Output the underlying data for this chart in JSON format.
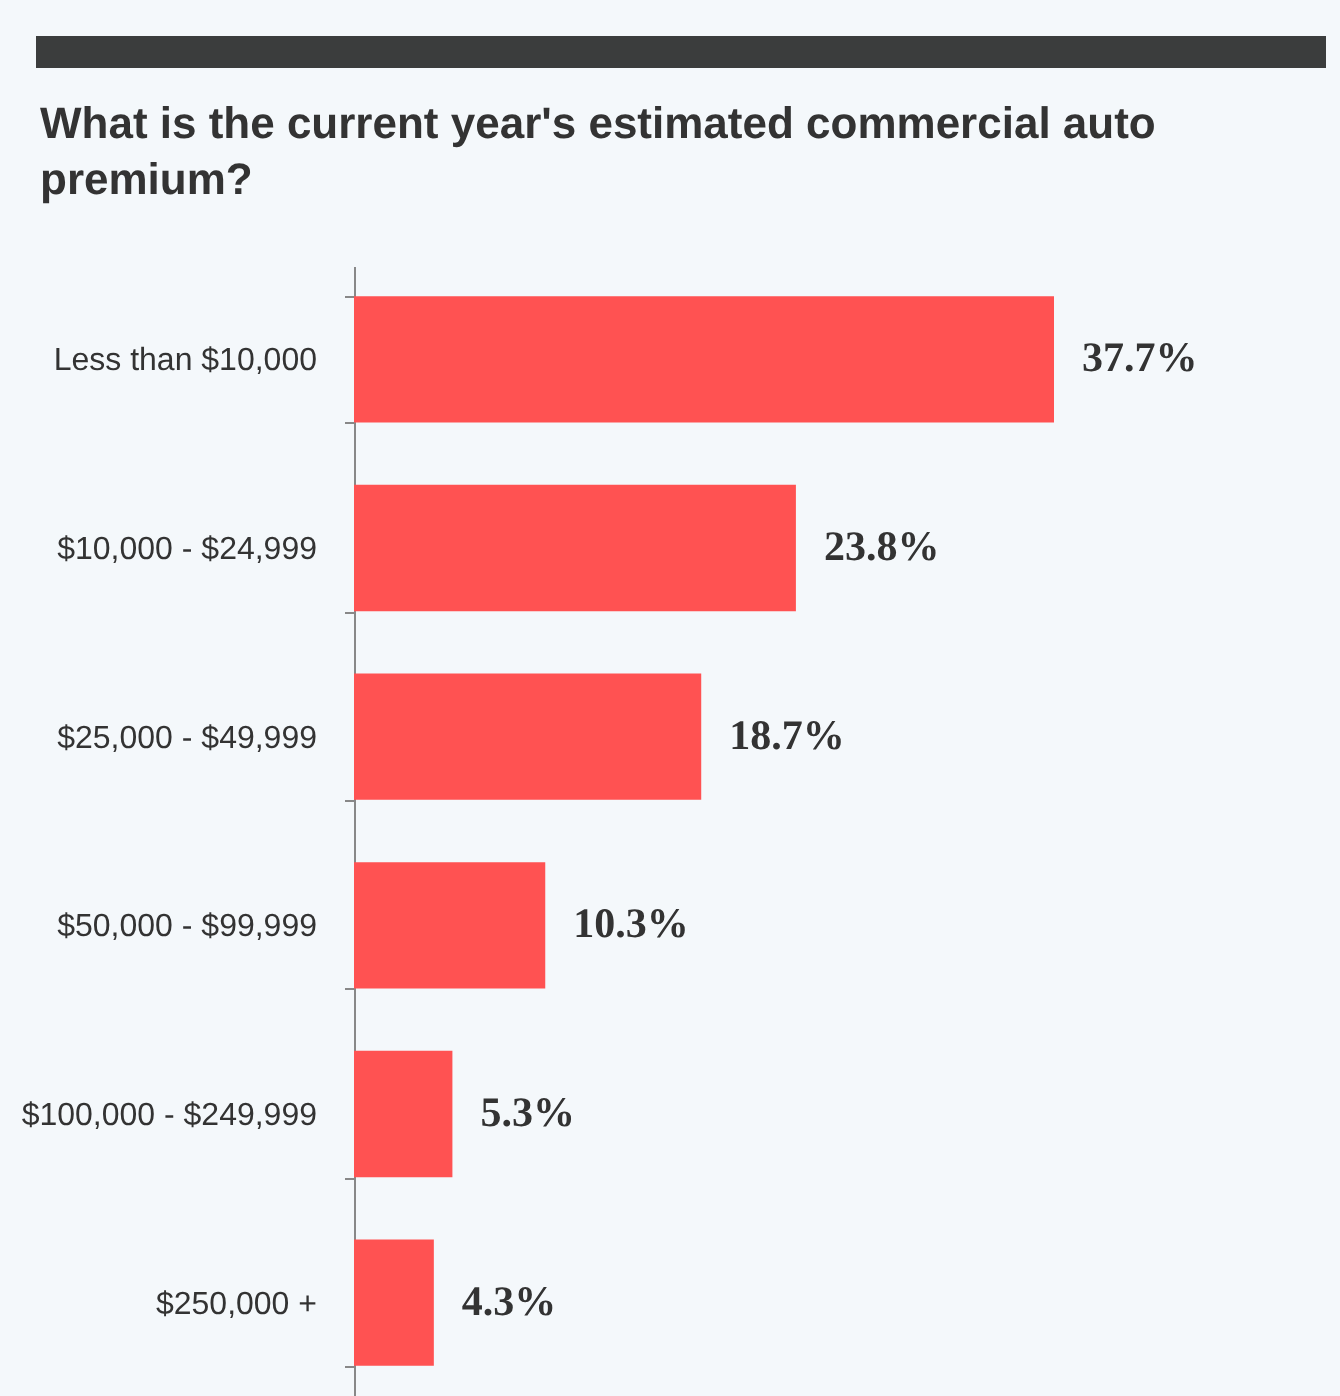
{
  "chart_data": {
    "type": "bar",
    "orientation": "horizontal",
    "title": "What is the current year's estimated commercial auto premium?",
    "categories": [
      "Less than $10,000",
      "$10,000 - $24,999",
      "$25,000 - $49,999",
      "$50,000 - $99,999",
      "$100,000 - $249,999",
      "$250,000 +"
    ],
    "values": [
      37.7,
      23.8,
      18.7,
      10.3,
      5.3,
      4.3
    ],
    "value_labels": [
      "37.7%",
      "23.8%",
      "18.7%",
      "10.3%",
      "5.3%",
      "4.3%"
    ],
    "color": "#ff5252",
    "xlim": [
      0,
      37.7
    ],
    "tick_labels": "y"
  }
}
